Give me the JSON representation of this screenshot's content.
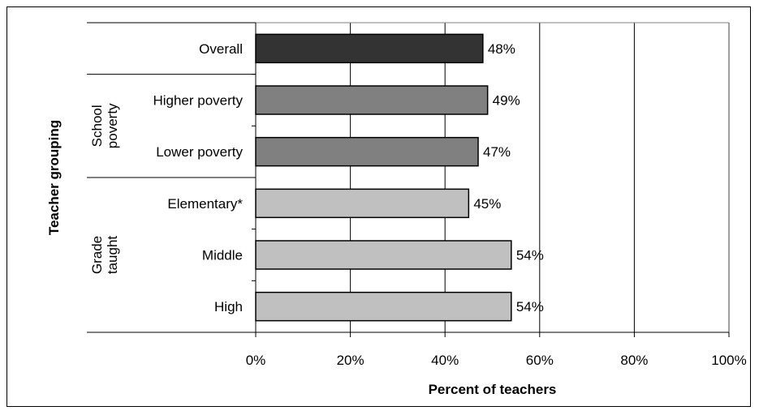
{
  "chart_data": {
    "type": "bar",
    "orientation": "horizontal",
    "categories": [
      "Overall",
      "Higher poverty",
      "Lower poverty",
      "Elementary*",
      "Middle",
      "High"
    ],
    "values": [
      48,
      49,
      47,
      45,
      54,
      54
    ],
    "value_labels": [
      "48%",
      "49%",
      "47%",
      "45%",
      "54%",
      "54%"
    ],
    "bar_colors": [
      "#333333",
      "#808080",
      "#808080",
      "#c0c0c0",
      "#c0c0c0",
      "#c0c0c0"
    ],
    "groups": [
      {
        "label": "School poverty",
        "lines": [
          "School",
          "poverty"
        ],
        "members": [
          "Higher poverty",
          "Lower poverty"
        ]
      },
      {
        "label": "Grade taught",
        "lines": [
          "Grade",
          "taught"
        ],
        "members": [
          "Elementary*",
          "Middle",
          "High"
        ]
      }
    ],
    "title": "",
    "xlabel": "Percent of teachers",
    "ylabel": "Teacher grouping",
    "xlim": [
      0,
      100
    ],
    "xticks": [
      0,
      20,
      40,
      60,
      80,
      100
    ],
    "xtick_labels": [
      "0%",
      "20%",
      "40%",
      "60%",
      "80%",
      "100%"
    ],
    "grid": true
  }
}
